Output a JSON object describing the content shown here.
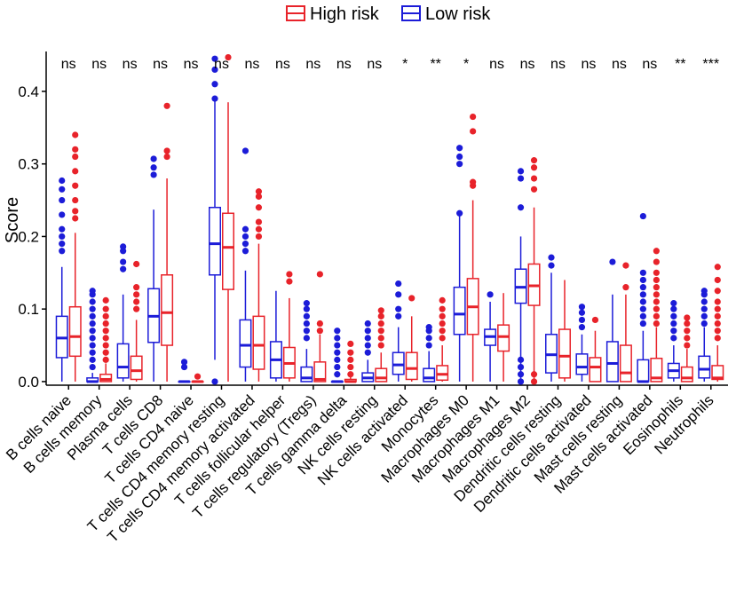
{
  "chart_data": {
    "type": "boxplot",
    "title": "",
    "xlabel": "",
    "ylabel": "Score",
    "ylim": [
      -0.005,
      0.455
    ],
    "yticks": [
      0.0,
      0.1,
      0.2,
      0.3,
      0.4
    ],
    "ytick_labels": [
      "0.0",
      "0.1",
      "0.2",
      "0.3",
      "0.4"
    ],
    "legend_position": "top",
    "series": [
      {
        "name": "High risk",
        "color": "#e8232a"
      },
      {
        "name": "Low risk",
        "color": "#1c1cd8"
      }
    ],
    "categories": [
      "B cells naive",
      "B cells memory",
      "Plasma cells",
      "T cells CD8",
      "T cells CD4 naive",
      "T cells CD4 memory resting",
      "T cells CD4 memory activated",
      "T cells follicular helper",
      "T cells regulatory (Tregs)",
      "T cells gamma delta",
      "NK cells resting",
      "NK cells activated",
      "Monocytes",
      "Macrophages M0",
      "Macrophages M1",
      "Macrophages M2",
      "Dendritic cells resting",
      "Dendritic cells activated",
      "Mast cells resting",
      "Mast cells activated",
      "Eosinophils",
      "Neutrophils"
    ],
    "significance": [
      "ns",
      "ns",
      "ns",
      "ns",
      "ns",
      "ns",
      "ns",
      "ns",
      "ns",
      "ns",
      "ns",
      "*",
      "**",
      "*",
      "ns",
      "ns",
      "ns",
      "ns",
      "ns",
      "ns",
      "**",
      "***"
    ],
    "boxes": {
      "Low risk": [
        {
          "min": 0.0,
          "q1": 0.033,
          "median": 0.06,
          "q3": 0.09,
          "max": 0.158,
          "outliers": [
            0.18,
            0.19,
            0.2,
            0.21,
            0.23,
            0.25,
            0.265,
            0.277
          ]
        },
        {
          "min": 0.0,
          "q1": 0.0,
          "median": 0.0,
          "q3": 0.005,
          "max": 0.012,
          "outliers": [
            0.02,
            0.03,
            0.04,
            0.05,
            0.06,
            0.07,
            0.08,
            0.09,
            0.1,
            0.11,
            0.12,
            0.125
          ]
        },
        {
          "min": 0.0,
          "q1": 0.005,
          "median": 0.02,
          "q3": 0.052,
          "max": 0.12,
          "outliers": [
            0.155,
            0.165,
            0.18,
            0.186
          ]
        },
        {
          "min": 0.0,
          "q1": 0.054,
          "median": 0.09,
          "q3": 0.128,
          "max": 0.237,
          "outliers": [
            0.285,
            0.295,
            0.307
          ]
        },
        {
          "min": 0.0,
          "q1": 0.0,
          "median": 0.0,
          "q3": 0.0,
          "max": 0.0,
          "outliers": [
            0.02,
            0.027
          ]
        },
        {
          "min": 0.03,
          "q1": 0.147,
          "median": 0.19,
          "q3": 0.24,
          "max": 0.39,
          "outliers": [
            0.0,
            0.39,
            0.41,
            0.43,
            0.445
          ]
        },
        {
          "min": 0.0,
          "q1": 0.02,
          "median": 0.05,
          "q3": 0.085,
          "max": 0.153,
          "outliers": [
            0.18,
            0.19,
            0.2,
            0.21,
            0.318
          ]
        },
        {
          "min": 0.0,
          "q1": 0.005,
          "median": 0.03,
          "q3": 0.055,
          "max": 0.125,
          "outliers": []
        },
        {
          "min": 0.0,
          "q1": 0.0,
          "median": 0.005,
          "q3": 0.02,
          "max": 0.045,
          "outliers": [
            0.06,
            0.07,
            0.08,
            0.09,
            0.1,
            0.108
          ]
        },
        {
          "min": 0.0,
          "q1": 0.0,
          "median": 0.0,
          "q3": 0.0,
          "max": 0.0,
          "outliers": [
            0.01,
            0.02,
            0.03,
            0.04,
            0.05,
            0.06,
            0.07
          ]
        },
        {
          "min": 0.0,
          "q1": 0.0,
          "median": 0.005,
          "q3": 0.012,
          "max": 0.03,
          "outliers": [
            0.04,
            0.05,
            0.06,
            0.07,
            0.08
          ]
        },
        {
          "min": 0.0,
          "q1": 0.01,
          "median": 0.023,
          "q3": 0.04,
          "max": 0.075,
          "outliers": [
            0.09,
            0.1,
            0.12,
            0.135
          ]
        },
        {
          "min": 0.0,
          "q1": 0.0,
          "median": 0.005,
          "q3": 0.018,
          "max": 0.042,
          "outliers": [
            0.05,
            0.06,
            0.07,
            0.075
          ]
        },
        {
          "min": 0.0,
          "q1": 0.065,
          "median": 0.093,
          "q3": 0.13,
          "max": 0.23,
          "outliers": [
            0.232,
            0.3,
            0.31,
            0.322
          ]
        },
        {
          "min": 0.0,
          "q1": 0.05,
          "median": 0.062,
          "q3": 0.072,
          "max": 0.11,
          "outliers": [
            0.12
          ]
        },
        {
          "min": 0.0,
          "q1": 0.108,
          "median": 0.13,
          "q3": 0.155,
          "max": 0.2,
          "outliers": [
            0.0,
            0.01,
            0.02,
            0.03,
            0.24,
            0.28,
            0.29
          ]
        },
        {
          "min": 0.0,
          "q1": 0.012,
          "median": 0.037,
          "q3": 0.065,
          "max": 0.15,
          "outliers": [
            0.16,
            0.171
          ]
        },
        {
          "min": 0.0,
          "q1": 0.01,
          "median": 0.02,
          "q3": 0.038,
          "max": 0.065,
          "outliers": [
            0.075,
            0.085,
            0.095,
            0.103
          ]
        },
        {
          "min": 0.0,
          "q1": 0.0,
          "median": 0.025,
          "q3": 0.055,
          "max": 0.12,
          "outliers": [
            0.165
          ]
        },
        {
          "min": 0.0,
          "q1": 0.0,
          "median": 0.0,
          "q3": 0.03,
          "max": 0.07,
          "outliers": [
            0.08,
            0.09,
            0.1,
            0.11,
            0.12,
            0.13,
            0.14,
            0.15,
            0.228
          ]
        },
        {
          "min": 0.0,
          "q1": 0.005,
          "median": 0.015,
          "q3": 0.025,
          "max": 0.05,
          "outliers": [
            0.06,
            0.07,
            0.08,
            0.09,
            0.1,
            0.108
          ]
        },
        {
          "min": 0.0,
          "q1": 0.005,
          "median": 0.017,
          "q3": 0.035,
          "max": 0.075,
          "outliers": [
            0.08,
            0.09,
            0.1,
            0.11,
            0.12,
            0.125
          ]
        }
      ],
      "High risk": [
        {
          "min": 0.0,
          "q1": 0.035,
          "median": 0.062,
          "q3": 0.103,
          "max": 0.205,
          "outliers": [
            0.225,
            0.235,
            0.25,
            0.27,
            0.29,
            0.31,
            0.32,
            0.34
          ]
        },
        {
          "min": 0.0,
          "q1": 0.0,
          "median": 0.003,
          "q3": 0.01,
          "max": 0.025,
          "outliers": [
            0.03,
            0.04,
            0.05,
            0.06,
            0.07,
            0.08,
            0.09,
            0.1,
            0.112
          ]
        },
        {
          "min": 0.0,
          "q1": 0.003,
          "median": 0.015,
          "q3": 0.035,
          "max": 0.085,
          "outliers": [
            0.1,
            0.11,
            0.12,
            0.13,
            0.162
          ]
        },
        {
          "min": 0.0,
          "q1": 0.05,
          "median": 0.095,
          "q3": 0.147,
          "max": 0.28,
          "outliers": [
            0.31,
            0.318,
            0.38
          ]
        },
        {
          "min": 0.0,
          "q1": 0.0,
          "median": 0.0,
          "q3": 0.0,
          "max": 0.0,
          "outliers": [
            0.007
          ]
        },
        {
          "min": 0.0,
          "q1": 0.127,
          "median": 0.185,
          "q3": 0.232,
          "max": 0.385,
          "outliers": [
            0.447
          ]
        },
        {
          "min": 0.0,
          "q1": 0.017,
          "median": 0.05,
          "q3": 0.09,
          "max": 0.19,
          "outliers": [
            0.2,
            0.21,
            0.22,
            0.24,
            0.255,
            0.262
          ]
        },
        {
          "min": 0.0,
          "q1": 0.005,
          "median": 0.025,
          "q3": 0.047,
          "max": 0.115,
          "outliers": [
            0.138,
            0.148
          ]
        },
        {
          "min": 0.0,
          "q1": 0.0,
          "median": 0.003,
          "q3": 0.027,
          "max": 0.065,
          "outliers": [
            0.07,
            0.08,
            0.148
          ]
        },
        {
          "min": 0.0,
          "q1": 0.0,
          "median": 0.0,
          "q3": 0.003,
          "max": 0.008,
          "outliers": [
            0.01,
            0.02,
            0.03,
            0.04,
            0.052
          ]
        },
        {
          "min": 0.0,
          "q1": 0.0,
          "median": 0.005,
          "q3": 0.018,
          "max": 0.04,
          "outliers": [
            0.05,
            0.06,
            0.07,
            0.08,
            0.09,
            0.098
          ]
        },
        {
          "min": 0.0,
          "q1": 0.003,
          "median": 0.018,
          "q3": 0.04,
          "max": 0.09,
          "outliers": [
            0.115
          ]
        },
        {
          "min": 0.0,
          "q1": 0.002,
          "median": 0.01,
          "q3": 0.022,
          "max": 0.05,
          "outliers": [
            0.06,
            0.07,
            0.08,
            0.09,
            0.1,
            0.112
          ]
        },
        {
          "min": 0.0,
          "q1": 0.065,
          "median": 0.103,
          "q3": 0.142,
          "max": 0.25,
          "outliers": [
            0.27,
            0.275,
            0.345,
            0.365
          ]
        },
        {
          "min": 0.0,
          "q1": 0.042,
          "median": 0.062,
          "q3": 0.078,
          "max": 0.122,
          "outliers": []
        },
        {
          "min": 0.0,
          "q1": 0.105,
          "median": 0.132,
          "q3": 0.162,
          "max": 0.24,
          "outliers": [
            0.0,
            0.01,
            0.265,
            0.28,
            0.295,
            0.305
          ]
        },
        {
          "min": 0.0,
          "q1": 0.005,
          "median": 0.035,
          "q3": 0.072,
          "max": 0.14,
          "outliers": []
        },
        {
          "min": 0.0,
          "q1": 0.0,
          "median": 0.02,
          "q3": 0.033,
          "max": 0.07,
          "outliers": [
            0.085
          ]
        },
        {
          "min": 0.0,
          "q1": 0.0,
          "median": 0.012,
          "q3": 0.05,
          "max": 0.12,
          "outliers": [
            0.13,
            0.16
          ]
        },
        {
          "min": 0.0,
          "q1": 0.0,
          "median": 0.005,
          "q3": 0.032,
          "max": 0.075,
          "outliers": [
            0.08,
            0.09,
            0.1,
            0.11,
            0.12,
            0.13,
            0.14,
            0.15,
            0.165,
            0.18
          ]
        },
        {
          "min": 0.0,
          "q1": 0.0,
          "median": 0.005,
          "q3": 0.02,
          "max": 0.045,
          "outliers": [
            0.05,
            0.06,
            0.07,
            0.08,
            0.088
          ]
        },
        {
          "min": 0.0,
          "q1": 0.003,
          "median": 0.005,
          "q3": 0.022,
          "max": 0.05,
          "outliers": [
            0.06,
            0.07,
            0.08,
            0.09,
            0.1,
            0.11,
            0.125,
            0.14,
            0.158
          ]
        }
      ]
    }
  }
}
